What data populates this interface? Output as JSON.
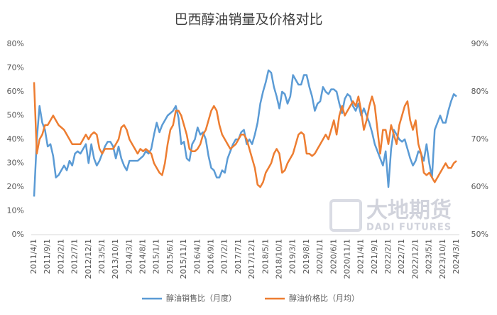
{
  "chart_data": {
    "type": "line",
    "title": "巴西醇油销量及价格对比",
    "watermark": {
      "name": "大地期货",
      "subname": "DADI FUTURES"
    },
    "categories": [
      "2011/4/1",
      null,
      null,
      null,
      null,
      "2011/9/1",
      null,
      null,
      null,
      null,
      "2012/2/1",
      null,
      null,
      null,
      null,
      "2012/7/1",
      null,
      null,
      null,
      null,
      "2012/12/1",
      null,
      null,
      null,
      null,
      "2013/5/1",
      null,
      null,
      null,
      null,
      "2013/10/1",
      null,
      null,
      null,
      null,
      "2014/3/1",
      null,
      null,
      null,
      null,
      "2014/8/1",
      null,
      null,
      null,
      null,
      "2015/1/1",
      null,
      null,
      null,
      null,
      "2015/6/1",
      null,
      null,
      null,
      null,
      "2015/11/1",
      null,
      null,
      null,
      null,
      "2016/4/1",
      null,
      null,
      null,
      null,
      "2016/9/1",
      null,
      null,
      null,
      null,
      "2017/2/1",
      null,
      null,
      null,
      null,
      "2017/7/1",
      null,
      null,
      null,
      null,
      "2017/12/1",
      null,
      null,
      null,
      null,
      "2018/5/1",
      null,
      null,
      null,
      null,
      "2018/10/1",
      null,
      null,
      null,
      null,
      "2019/3/1",
      null,
      null,
      null,
      null,
      "2019/8/1",
      null,
      null,
      null,
      null,
      "2020/1/1",
      null,
      null,
      null,
      null,
      "2020/6/1",
      null,
      null,
      null,
      null,
      "2020/11/1",
      null,
      null,
      null,
      null,
      "2021/4/1",
      null,
      null,
      null,
      null,
      "2021/9/1",
      null,
      null,
      null,
      null,
      "2022/2/1",
      null,
      null,
      null,
      null,
      "2022/7/1",
      null,
      null,
      null,
      null,
      "2022/12/1",
      null,
      null,
      null,
      null,
      "2023/5/1",
      null,
      null,
      null,
      null,
      "2023/10/1",
      null,
      null,
      null,
      null,
      "2024/3/1"
    ],
    "series": [
      {
        "name": "醇油销售比（月度）",
        "color": "#5b9bd5",
        "axis": "y",
        "values": [
          16,
          40,
          54,
          47,
          44,
          37,
          38,
          33,
          24,
          25,
          27,
          29,
          27,
          31,
          29,
          34,
          35,
          34,
          36,
          38,
          30,
          38,
          32,
          29,
          31,
          34,
          37,
          39,
          39,
          37,
          32,
          37,
          32,
          29,
          27,
          31,
          31,
          31,
          31,
          32,
          33,
          35,
          34,
          36,
          42,
          47,
          43,
          46,
          48,
          50,
          51,
          52,
          54,
          49,
          38,
          39,
          32,
          31,
          38,
          40,
          45,
          42,
          43,
          40,
          33,
          28,
          27,
          24,
          24,
          27,
          26,
          32,
          35,
          38,
          40,
          40,
          43,
          44,
          38,
          40,
          38,
          42,
          47,
          55,
          60,
          64,
          69,
          68,
          62,
          58,
          53,
          60,
          59,
          55,
          58,
          67,
          65,
          63,
          63,
          67,
          67,
          62,
          58,
          52,
          55,
          56,
          62,
          60,
          59,
          61,
          61,
          60,
          55,
          51,
          57,
          59,
          58,
          54,
          52,
          55,
          50,
          53,
          50,
          47,
          43,
          38,
          35,
          32,
          29,
          35,
          20,
          36,
          44,
          42,
          40,
          39,
          40,
          36,
          32,
          29,
          31,
          35,
          34,
          31,
          38,
          30,
          24,
          44,
          47,
          50,
          47,
          47,
          52,
          56,
          59,
          58
        ]
      },
      {
        "name": "醇油价格比（月均）",
        "color": "#ed7d31",
        "axis": "y2",
        "values": [
          82,
          67,
          70,
          71,
          73,
          73,
          74,
          75,
          74,
          73,
          72.5,
          72,
          71,
          70,
          69,
          69,
          69,
          69,
          70,
          71,
          70,
          71,
          71.5,
          71,
          68,
          67,
          68,
          68,
          68,
          68,
          69,
          70,
          72.5,
          73,
          72,
          70,
          69,
          68,
          67,
          68,
          67.5,
          68,
          67.5,
          67,
          65,
          64,
          63,
          62.5,
          65,
          69,
          72,
          73,
          76,
          76,
          75,
          73,
          71,
          68,
          67.5,
          67.5,
          68,
          69,
          71,
          72,
          74,
          76,
          77,
          76,
          73,
          71,
          70,
          69,
          68,
          68.5,
          69,
          70,
          71,
          71,
          70,
          68,
          66,
          64,
          60.5,
          60,
          61,
          63,
          64,
          65,
          67,
          68,
          67,
          63,
          63.5,
          65,
          66,
          67,
          69,
          71,
          71.5,
          71,
          67,
          67,
          66.5,
          67,
          68,
          69,
          70,
          71,
          70,
          72,
          74,
          71,
          75,
          77,
          75,
          76,
          77,
          78,
          77,
          79,
          76,
          72,
          74,
          77,
          79,
          77,
          72,
          67,
          72,
          72,
          69,
          73,
          71,
          69,
          73,
          75,
          77,
          78,
          74,
          72,
          74,
          69,
          67,
          63,
          62.5,
          63,
          62,
          61,
          62,
          63,
          64,
          65,
          64,
          64,
          65,
          65.5
        ]
      }
    ],
    "ylim": [
      0,
      80
    ],
    "yticks": [
      {
        "value": 0,
        "label": "0%"
      },
      {
        "value": 10,
        "label": "10%"
      },
      {
        "value": 20,
        "label": "20%"
      },
      {
        "value": 30,
        "label": "30%"
      },
      {
        "value": 40,
        "label": "40%"
      },
      {
        "value": 50,
        "label": "50%"
      },
      {
        "value": 60,
        "label": "60%"
      },
      {
        "value": 70,
        "label": "70%"
      },
      {
        "value": 80,
        "label": "80%"
      }
    ],
    "y2lim": [
      50,
      90
    ],
    "y2ticks": [
      {
        "value": 50,
        "label": "50%"
      },
      {
        "value": 60,
        "label": "60%"
      },
      {
        "value": 70,
        "label": "70%"
      },
      {
        "value": 80,
        "label": "80%"
      },
      {
        "value": 90,
        "label": "90%"
      }
    ],
    "grid": false,
    "legend": "bottom"
  }
}
